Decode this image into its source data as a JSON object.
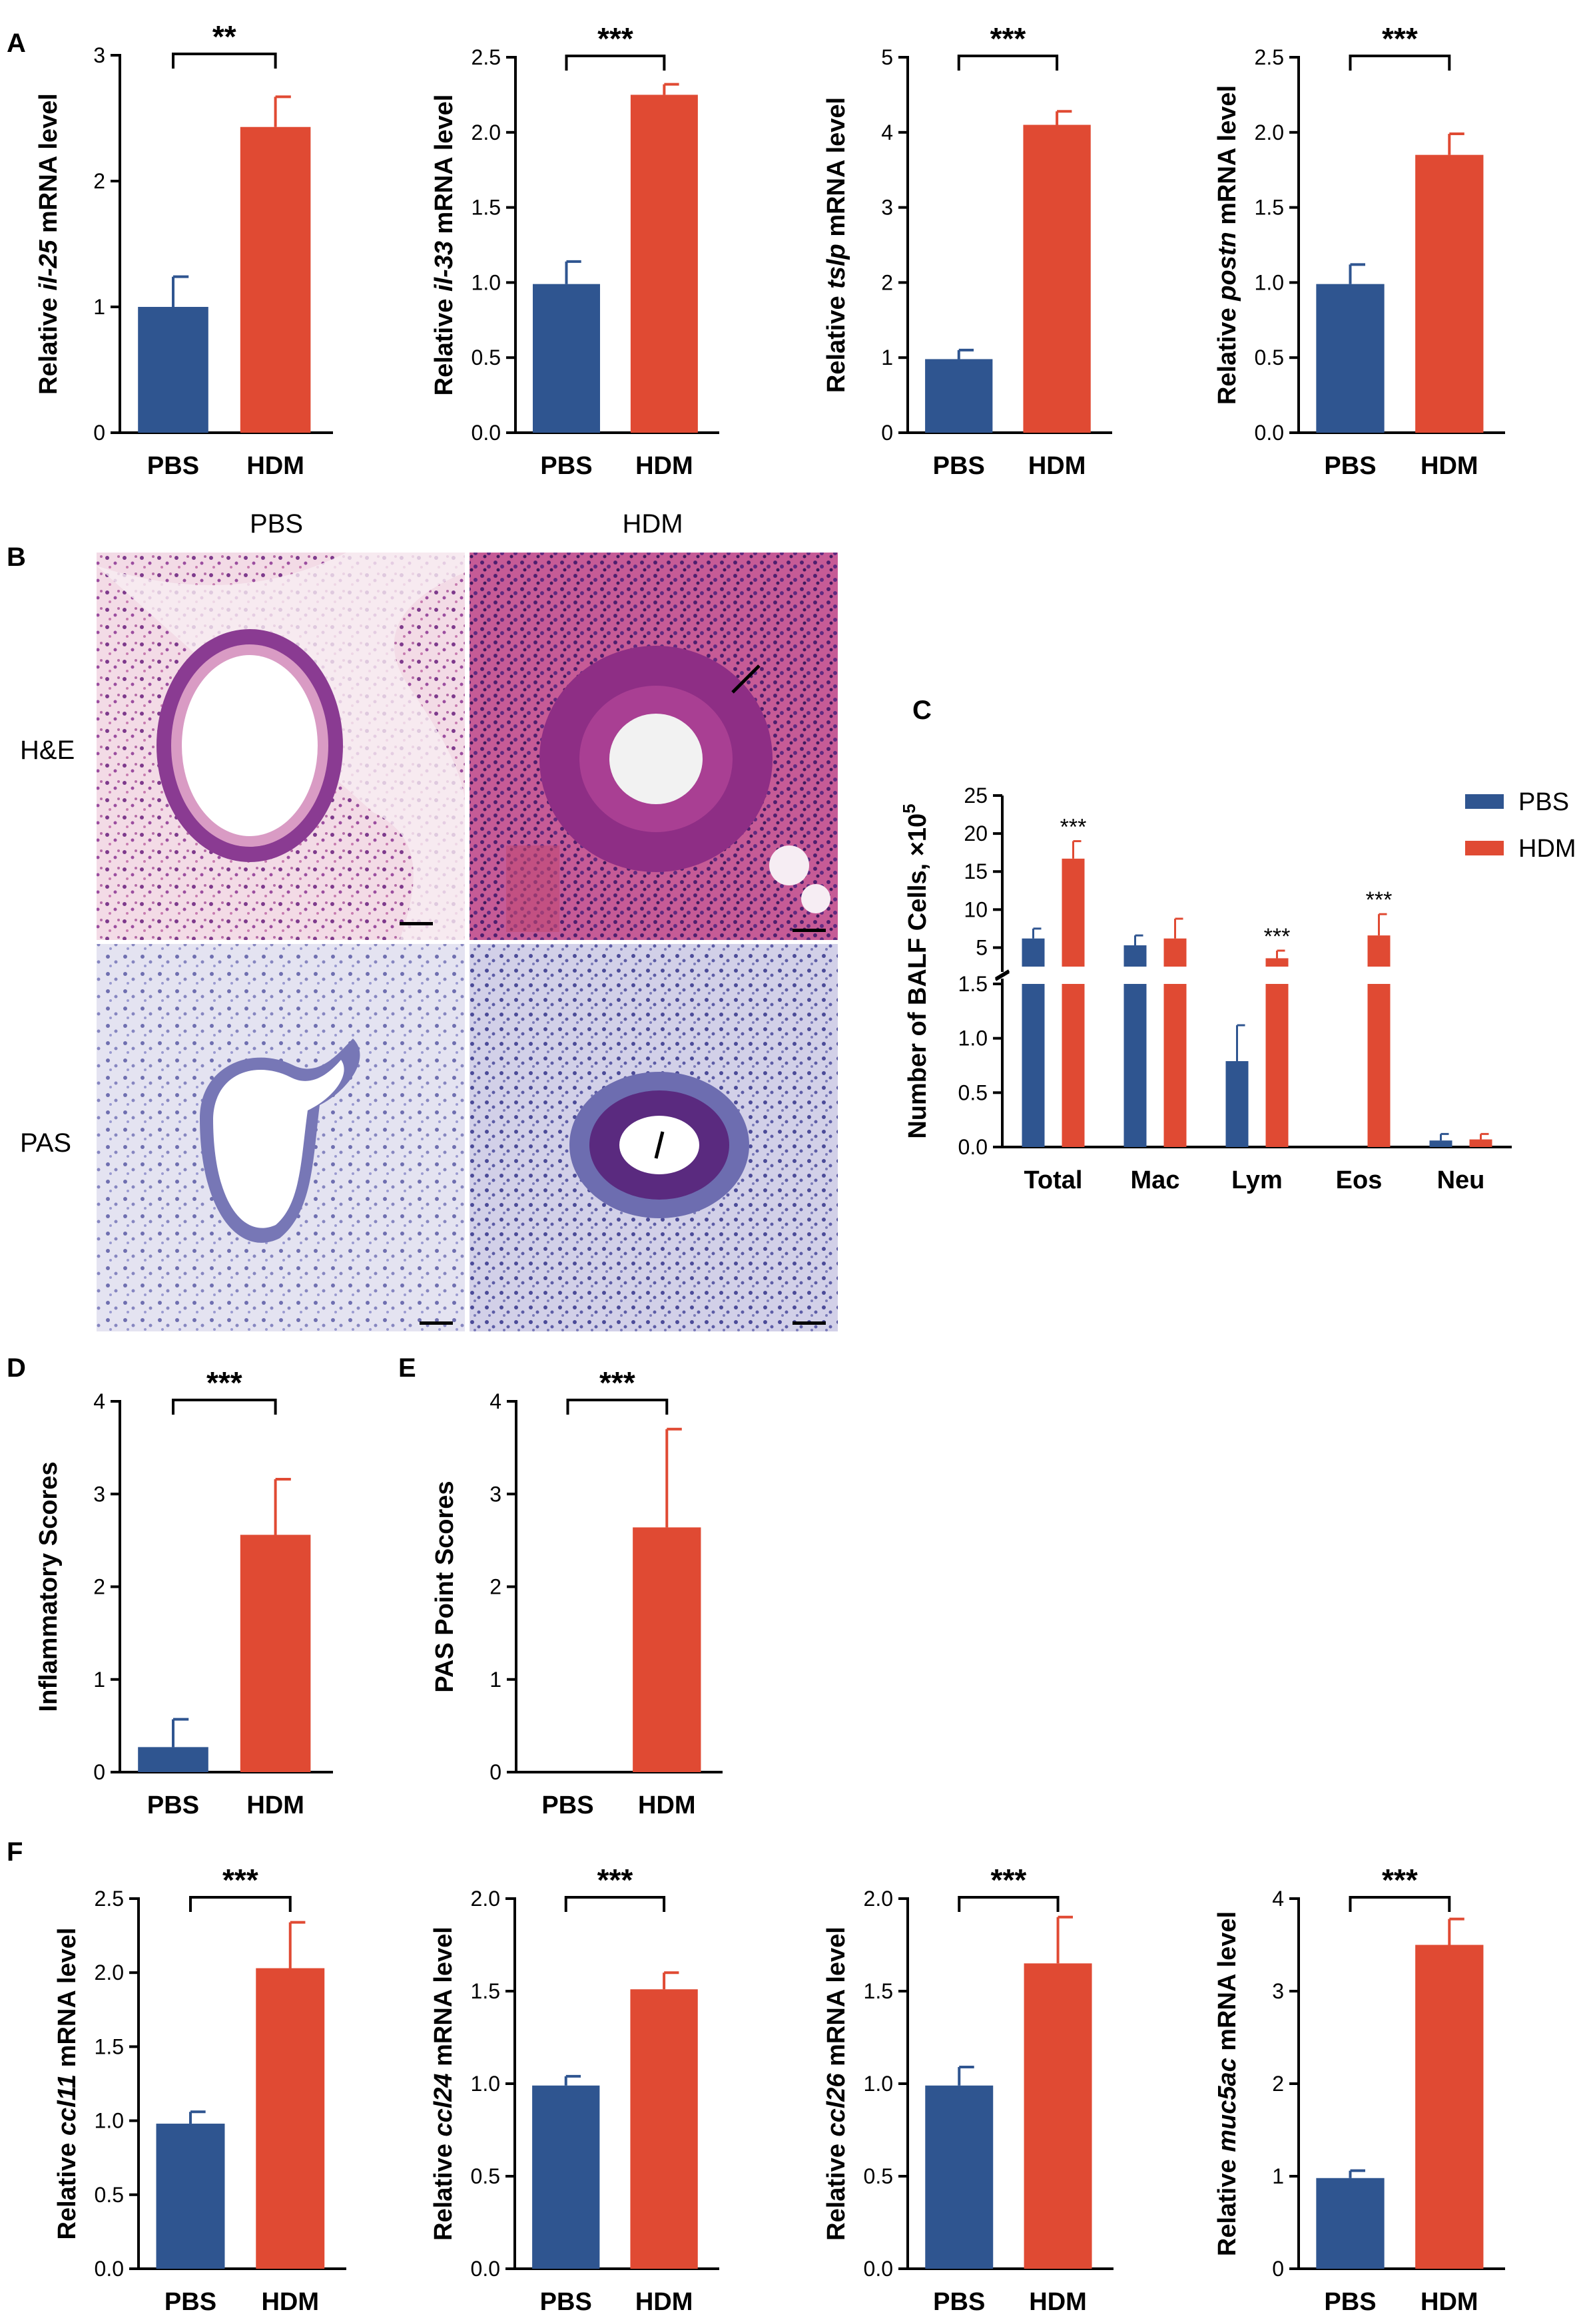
{
  "colors": {
    "pbs": "#2f5590",
    "hdm": "#e04a33",
    "axis": "#000000"
  },
  "panel_labels": [
    "A",
    "B",
    "C",
    "D",
    "E",
    "F"
  ],
  "panel_b": {
    "columns": [
      "PBS",
      "HDM"
    ],
    "rows": [
      "H&E",
      "PAS"
    ]
  },
  "chart_data": [
    {
      "id": "A1",
      "type": "bar",
      "categories": [
        "PBS",
        "HDM"
      ],
      "values": [
        1.0,
        2.43
      ],
      "errors": [
        0.24,
        0.24
      ],
      "ylim": [
        0,
        3
      ],
      "yticks": [
        "0",
        "1",
        "2",
        "3"
      ],
      "ylabel_pre": "Relative ",
      "ylabel_gene": "il-25",
      "ylabel_post": " mRNA level",
      "significance": "**"
    },
    {
      "id": "A2",
      "type": "bar",
      "categories": [
        "PBS",
        "HDM"
      ],
      "values": [
        0.99,
        2.25
      ],
      "errors": [
        0.15,
        0.07
      ],
      "ylim": [
        0,
        2.5
      ],
      "yticks": [
        "0.0",
        "0.5",
        "1.0",
        "1.5",
        "2.0",
        "2.5"
      ],
      "ylabel_pre": "Relative ",
      "ylabel_gene": "il-33",
      "ylabel_post": " mRNA level",
      "significance": "***"
    },
    {
      "id": "A3",
      "type": "bar",
      "categories": [
        "PBS",
        "HDM"
      ],
      "values": [
        0.98,
        4.1
      ],
      "errors": [
        0.12,
        0.18
      ],
      "ylim": [
        0,
        5
      ],
      "yticks": [
        "0",
        "1",
        "2",
        "3",
        "4",
        "5"
      ],
      "ylabel_pre": "Relative ",
      "ylabel_gene": "tslp",
      "ylabel_post": " mRNA level",
      "significance": "***"
    },
    {
      "id": "A4",
      "type": "bar",
      "categories": [
        "PBS",
        "HDM"
      ],
      "values": [
        0.99,
        1.85
      ],
      "errors": [
        0.13,
        0.14
      ],
      "ylim": [
        0,
        2.5
      ],
      "yticks": [
        "0.0",
        "0.5",
        "1.0",
        "1.5",
        "2.0",
        "2.5"
      ],
      "ylabel_pre": "Relative ",
      "ylabel_gene": "postn",
      "ylabel_post": " mRNA level",
      "significance": "***"
    },
    {
      "id": "C",
      "type": "bar",
      "categories": [
        "Total",
        "Mac",
        "Lym",
        "Eos",
        "Neu"
      ],
      "series": [
        {
          "name": "PBS",
          "values": [
            6.2,
            5.3,
            0.79,
            0.0,
            0.06
          ],
          "errors": [
            1.3,
            1.3,
            0.33,
            0.0,
            0.06
          ]
        },
        {
          "name": "HDM",
          "values": [
            16.7,
            6.2,
            3.6,
            6.6,
            0.07
          ],
          "errors": [
            2.3,
            2.6,
            1.0,
            2.8,
            0.05
          ]
        }
      ],
      "ylabel": "Number of BALF Cells, ×10",
      "ylabel_sup": "5",
      "axis_break": {
        "lower_range": [
          0,
          1.5
        ],
        "upper_range": [
          1.5,
          25
        ]
      },
      "yticks_lower": [
        "0.0",
        "0.5",
        "1.0",
        "1.5"
      ],
      "yticks_upper": [
        "5",
        "10",
        "15",
        "20",
        "25"
      ],
      "significance": [
        "***",
        "",
        "***",
        "***",
        ""
      ],
      "legend_position": "top-right"
    },
    {
      "id": "D",
      "type": "bar",
      "categories": [
        "PBS",
        "HDM"
      ],
      "values": [
        0.27,
        2.56
      ],
      "errors": [
        0.3,
        0.6
      ],
      "ylim": [
        0,
        4
      ],
      "yticks": [
        "0",
        "1",
        "2",
        "3",
        "4"
      ],
      "ylabel": "Inflammatory Scores",
      "significance": "***"
    },
    {
      "id": "E",
      "type": "bar",
      "categories": [
        "PBS",
        "HDM"
      ],
      "values": [
        0.0,
        2.64
      ],
      "errors": [
        0.0,
        1.06
      ],
      "ylim": [
        0,
        4
      ],
      "yticks": [
        "0",
        "1",
        "2",
        "3",
        "4"
      ],
      "ylabel": "PAS Point Scores",
      "significance": "***"
    },
    {
      "id": "F1",
      "type": "bar",
      "categories": [
        "PBS",
        "HDM"
      ],
      "values": [
        0.98,
        2.03
      ],
      "errors": [
        0.08,
        0.31
      ],
      "ylim": [
        0,
        2.5
      ],
      "yticks": [
        "0.0",
        "0.5",
        "1.0",
        "1.5",
        "2.0",
        "2.5"
      ],
      "ylabel_pre": "Relative ",
      "ylabel_gene": "ccl11",
      "ylabel_post": " mRNA level",
      "significance": "***"
    },
    {
      "id": "F2",
      "type": "bar",
      "categories": [
        "PBS",
        "HDM"
      ],
      "values": [
        0.99,
        1.51
      ],
      "errors": [
        0.05,
        0.09
      ],
      "ylim": [
        0,
        2.0
      ],
      "yticks": [
        "0.0",
        "0.5",
        "1.0",
        "1.5",
        "2.0"
      ],
      "ylabel_pre": "Relative ",
      "ylabel_gene": "ccl24",
      "ylabel_post": " mRNA level",
      "significance": "***"
    },
    {
      "id": "F3",
      "type": "bar",
      "categories": [
        "PBS",
        "HDM"
      ],
      "values": [
        0.99,
        1.65
      ],
      "errors": [
        0.1,
        0.25
      ],
      "ylim": [
        0,
        2.0
      ],
      "yticks": [
        "0.0",
        "0.5",
        "1.0",
        "1.5",
        "2.0"
      ],
      "ylabel_pre": "Relative ",
      "ylabel_gene": "ccl26",
      "ylabel_post": " mRNA level",
      "significance": "***"
    },
    {
      "id": "F4",
      "type": "bar",
      "categories": [
        "PBS",
        "HDM"
      ],
      "values": [
        0.98,
        3.5
      ],
      "errors": [
        0.08,
        0.28
      ],
      "ylim": [
        0,
        4
      ],
      "yticks": [
        "0",
        "1",
        "2",
        "3",
        "4"
      ],
      "ylabel_pre": "Relative ",
      "ylabel_gene": "muc5ac",
      "ylabel_post": " mRNA level",
      "significance": "***"
    }
  ]
}
